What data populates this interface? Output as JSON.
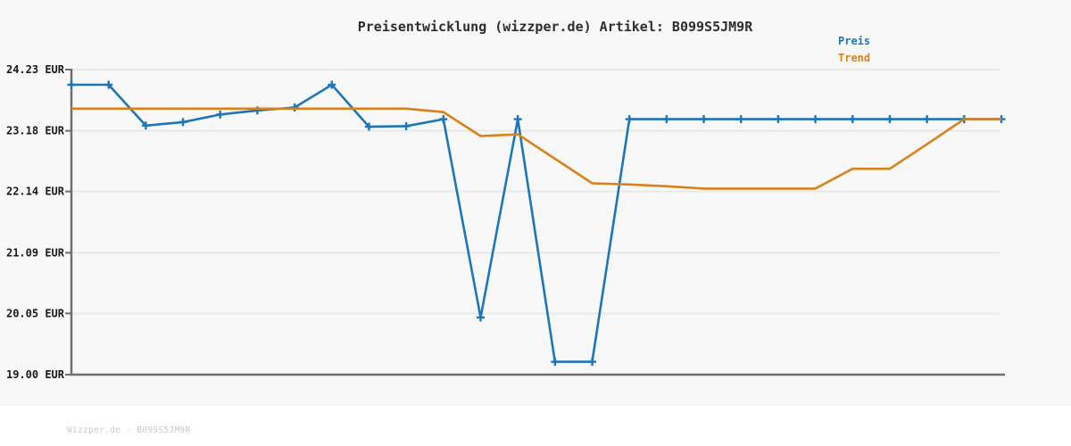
{
  "header": {
    "title": "Preisentwicklung (wizzper.de) Artikel: B099S5JM9R"
  },
  "legend": {
    "items": [
      {
        "label": "Preis",
        "color": "#1c76b8"
      },
      {
        "label": "Trend",
        "color": "#d8821a"
      }
    ]
  },
  "footer": {
    "text": "Wizzper.de - B099S5JM9R"
  },
  "colors": {
    "plot_background": "#f8f8f8",
    "grid_line": "#e9e9e9",
    "axis_spine": "#6f6f6f",
    "tick_label": "#191919",
    "price_line": "#1c76b8",
    "trend_line": "#d8821a",
    "footer_text": "#c9c9c9"
  },
  "chart_data": {
    "type": "line",
    "title": "Preisentwicklung (wizzper.de) Artikel: B099S5JM9R",
    "currency": "EUR",
    "grid": true,
    "legend_position": "top-right",
    "x_axis": {
      "labels_visible": false,
      "points": 26
    },
    "x": [
      0,
      1,
      2,
      3,
      4,
      5,
      6,
      7,
      8,
      9,
      10,
      11,
      12,
      13,
      14,
      15,
      16,
      17,
      18,
      19,
      20,
      21,
      22,
      23,
      24,
      25
    ],
    "ylim": [
      19.0,
      24.23
    ],
    "y_ticks": [
      {
        "value": 24.23,
        "label": "24.23 EUR"
      },
      {
        "value": 23.18,
        "label": "23.18 EUR"
      },
      {
        "value": 22.14,
        "label": "22.14 EUR"
      },
      {
        "value": 21.09,
        "label": "21.09 EUR"
      },
      {
        "value": 20.05,
        "label": "20.05 EUR"
      },
      {
        "value": 19.0,
        "label": "19.00 EUR"
      }
    ],
    "series": [
      {
        "name": "Preis",
        "color": "#1c76b8",
        "marker": "plus",
        "values": [
          23.97,
          23.97,
          23.27,
          23.33,
          23.46,
          23.53,
          23.58,
          23.97,
          23.25,
          23.26,
          23.38,
          19.98,
          23.38,
          19.22,
          19.22,
          23.38,
          23.38,
          23.38,
          23.38,
          23.38,
          23.38,
          23.38,
          23.38,
          23.38,
          23.38,
          23.38
        ]
      },
      {
        "name": "Trend",
        "color": "#d8821a",
        "marker": "none",
        "values": [
          23.56,
          23.56,
          23.56,
          23.56,
          23.56,
          23.56,
          23.56,
          23.56,
          23.56,
          23.56,
          23.5,
          23.09,
          23.12,
          22.7,
          22.28,
          22.26,
          22.23,
          22.19,
          22.19,
          22.19,
          22.19,
          22.53,
          22.53,
          22.95,
          23.38,
          23.38
        ]
      }
    ]
  }
}
